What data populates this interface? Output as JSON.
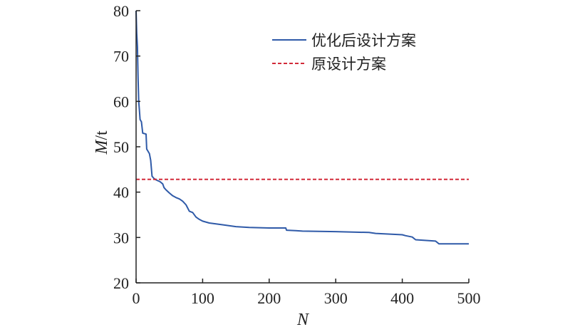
{
  "chart_data": {
    "type": "line",
    "title": "",
    "xlabel": "N",
    "ylabel_main": "M",
    "ylabel_unit": "/t",
    "xlim": [
      0,
      500
    ],
    "ylim": [
      20,
      80
    ],
    "xticks": [
      "0",
      "100",
      "200",
      "300",
      "400",
      "500"
    ],
    "yticks": [
      "20",
      "30",
      "40",
      "50",
      "60",
      "70",
      "80"
    ],
    "grid": false,
    "legend_position": "top-right",
    "series": [
      {
        "name": "优化后设计方案",
        "color": "#2f5aa8",
        "style": "solid",
        "points": [
          [
            0,
            80
          ],
          [
            1,
            75
          ],
          [
            2,
            72
          ],
          [
            3,
            65
          ],
          [
            4,
            60
          ],
          [
            5,
            58
          ],
          [
            6,
            56
          ],
          [
            8,
            55.5
          ],
          [
            10,
            53
          ],
          [
            15,
            52.8
          ],
          [
            16,
            49.5
          ],
          [
            18,
            49
          ],
          [
            20,
            48.5
          ],
          [
            22,
            47
          ],
          [
            24,
            43.5
          ],
          [
            27,
            43
          ],
          [
            30,
            42.7
          ],
          [
            36,
            42.3
          ],
          [
            40,
            41.8
          ],
          [
            42,
            41
          ],
          [
            45,
            40.5
          ],
          [
            50,
            39.8
          ],
          [
            55,
            39.2
          ],
          [
            60,
            38.8
          ],
          [
            65,
            38.5
          ],
          [
            70,
            38
          ],
          [
            75,
            37.2
          ],
          [
            80,
            35.8
          ],
          [
            85,
            35.5
          ],
          [
            90,
            34.5
          ],
          [
            95,
            34
          ],
          [
            100,
            33.6
          ],
          [
            110,
            33.2
          ],
          [
            120,
            33
          ],
          [
            130,
            32.8
          ],
          [
            150,
            32.4
          ],
          [
            170,
            32.2
          ],
          [
            200,
            32.1
          ],
          [
            225,
            32.1
          ],
          [
            226,
            31.6
          ],
          [
            240,
            31.5
          ],
          [
            250,
            31.4
          ],
          [
            300,
            31.3
          ],
          [
            350,
            31.1
          ],
          [
            360,
            30.9
          ],
          [
            400,
            30.6
          ],
          [
            405,
            30.4
          ],
          [
            415,
            30.1
          ],
          [
            420,
            29.5
          ],
          [
            440,
            29.3
          ],
          [
            450,
            29.2
          ],
          [
            455,
            28.6
          ],
          [
            480,
            28.6
          ],
          [
            500,
            28.6
          ]
        ]
      },
      {
        "name": "原设计方案",
        "color": "#d22b3a",
        "style": "dashed",
        "points": [
          [
            0,
            42.8
          ],
          [
            500,
            42.8
          ]
        ]
      }
    ]
  }
}
